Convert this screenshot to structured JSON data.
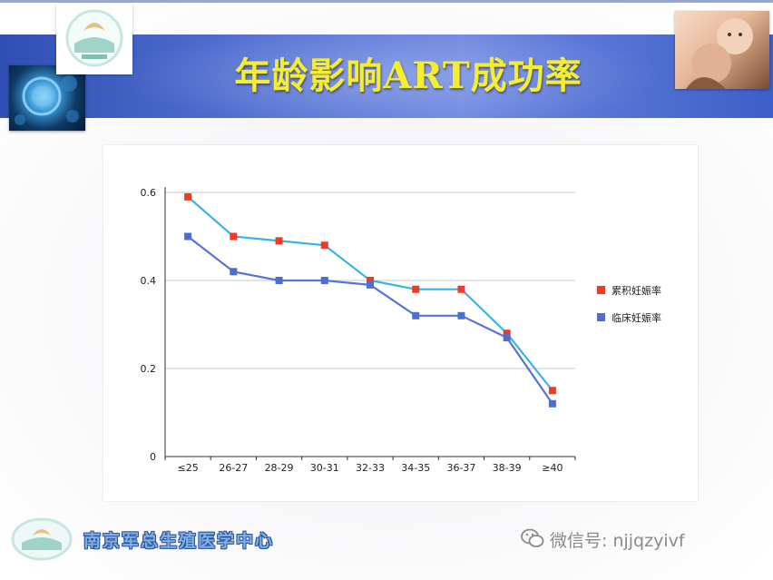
{
  "slide": {
    "title": "年龄影响ART成功率",
    "colors": {
      "banner": "#3d5fc8",
      "title_text": "#f5ee2e",
      "accent_blue": "#4a6fd1"
    }
  },
  "chart_data": {
    "type": "line",
    "categories": [
      "≤25",
      "26-27",
      "28-29",
      "30-31",
      "32-33",
      "34-35",
      "36-37",
      "38-39",
      "≥40"
    ],
    "series": [
      {
        "name": "累积妊娠率",
        "values": [
          0.59,
          0.5,
          0.49,
          0.48,
          0.4,
          0.38,
          0.38,
          0.28,
          0.15
        ],
        "marker_color": "#ee3b26",
        "line_color": "#34b5e5"
      },
      {
        "name": "临床妊娠率",
        "values": [
          0.5,
          0.42,
          0.4,
          0.4,
          0.39,
          0.32,
          0.32,
          0.27,
          0.12
        ],
        "marker_color": "#4a6fd1",
        "line_color": "#5773d6"
      }
    ],
    "yticks": [
      "0",
      "0.2",
      "0.4",
      "0.6"
    ],
    "ylim": [
      0,
      0.6
    ],
    "grid": true,
    "legend_position": "right"
  },
  "footer": {
    "org_name": "南京军总生殖医学中心",
    "wechat_label": "微信号: njjqzyivf"
  }
}
